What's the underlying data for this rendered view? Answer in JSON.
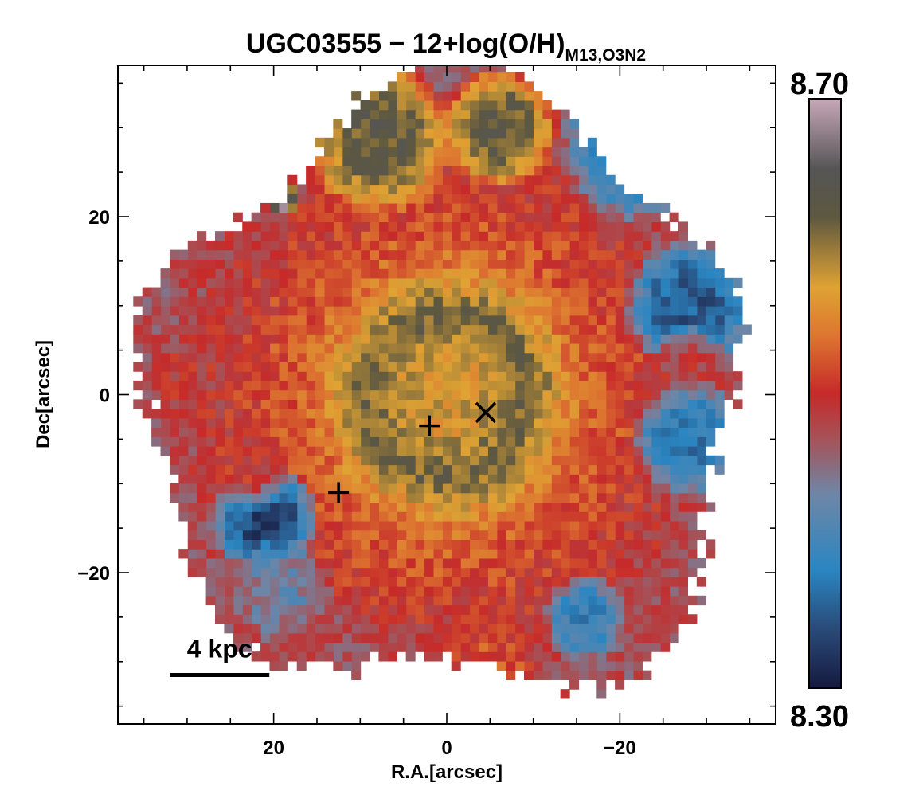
{
  "chart_data": {
    "type": "heatmap",
    "title": {
      "main": "UGC03555 − 12+log(O/H)",
      "subscript": "M13,O3N2"
    },
    "xlabel": "R.A.[arcsec]",
    "ylabel": "Dec[arcsec]",
    "x_direction": "decreasing-to-right",
    "xlim": [
      38,
      -38
    ],
    "ylim": [
      -37,
      37
    ],
    "x_ticks": [
      20,
      0,
      -20
    ],
    "x_tick_labels": [
      "20",
      "0",
      "−20"
    ],
    "y_ticks": [
      20,
      0,
      -20
    ],
    "y_tick_labels": [
      "20",
      "0",
      "−20"
    ],
    "x_minor_ticks": [
      35,
      30,
      25,
      15,
      10,
      5,
      -5,
      -10,
      -15,
      -25,
      -30,
      -35
    ],
    "y_minor_ticks": [
      35,
      30,
      25,
      15,
      10,
      5,
      -5,
      -10,
      -15,
      -25,
      -30,
      -35
    ],
    "colorbar": {
      "min": 8.3,
      "max": 8.7,
      "min_label": "8.30",
      "max_label": "8.70",
      "stops": [
        {
          "v": 0.0,
          "color": "#151a3f"
        },
        {
          "v": 0.1,
          "color": "#2a4a78"
        },
        {
          "v": 0.2,
          "color": "#2a86c2"
        },
        {
          "v": 0.33,
          "color": "#6f86a6"
        },
        {
          "v": 0.42,
          "color": "#a4545a"
        },
        {
          "v": 0.5,
          "color": "#c62a2a"
        },
        {
          "v": 0.6,
          "color": "#dd7730"
        },
        {
          "v": 0.68,
          "color": "#dfa233"
        },
        {
          "v": 0.8,
          "color": "#5d5840"
        },
        {
          "v": 0.88,
          "color": "#555555"
        },
        {
          "v": 1.0,
          "color": "#c7a7b8"
        }
      ]
    },
    "markers": [
      {
        "symbol": "plus",
        "x": 2,
        "y": -3.5
      },
      {
        "symbol": "plus",
        "x": 12.5,
        "y": -11
      },
      {
        "symbol": "cross",
        "x": -4.5,
        "y": -2
      }
    ],
    "scale_bar": {
      "label": "4 kpc",
      "x_start": 32,
      "x_end": 20.5,
      "y": -31.5
    },
    "map_model": {
      "grid_spacing_arcsec": 1.05,
      "center_value": 8.58,
      "outer_value": 8.47,
      "ring_value": 8.61,
      "ring_radius_arcsec": 9,
      "ring_width_arcsec": 4,
      "edge_radius_arcsec": 34,
      "regions": [
        {
          "name": "north-cap",
          "x": 8,
          "y": 29,
          "r": 9,
          "value": 8.625
        },
        {
          "name": "north-cap-2",
          "x": -6,
          "y": 30,
          "r": 7,
          "value": 8.625
        },
        {
          "name": "north-east-edge",
          "x": -22,
          "y": 28,
          "r": 9,
          "value": 8.36
        },
        {
          "name": "east-edge-blue",
          "x": -28,
          "y": 10,
          "r": 8,
          "value": 8.35
        },
        {
          "name": "east-edge-red",
          "x": -28,
          "y": 3,
          "r": 5,
          "value": 8.49
        },
        {
          "name": "dark-knot",
          "x": -29.5,
          "y": 22,
          "r": 3.5,
          "value": 8.32
        },
        {
          "name": "east-lower",
          "x": -28,
          "y": -5,
          "r": 7,
          "value": 8.37
        },
        {
          "name": "southwest-blue",
          "x": 21,
          "y": -14,
          "r": 6.5,
          "value": 8.33
        },
        {
          "name": "southwest-grey",
          "x": 19,
          "y": -22,
          "r": 6,
          "value": 8.43
        },
        {
          "name": "south-brown",
          "x": 13,
          "y": -30,
          "r": 7,
          "value": 8.47
        },
        {
          "name": "south-grey",
          "x": -5,
          "y": -31,
          "r": 6,
          "value": 8.52
        },
        {
          "name": "west-red",
          "x": 30,
          "y": 2,
          "r": 6,
          "value": 8.49
        },
        {
          "name": "west-red-2",
          "x": 23,
          "y": -8,
          "r": 5,
          "value": 8.5
        },
        {
          "name": "southeast-blue",
          "x": -16,
          "y": -25,
          "r": 5,
          "value": 8.38
        },
        {
          "name": "northwest-pink",
          "x": 19,
          "y": 22,
          "r": 2,
          "value": 8.69
        }
      ]
    }
  }
}
